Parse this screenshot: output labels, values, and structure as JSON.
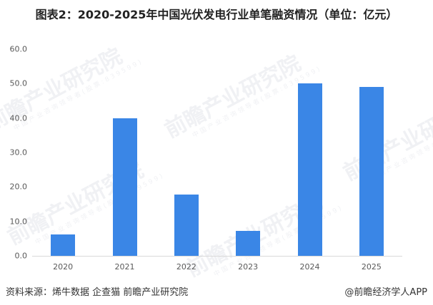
{
  "title": "图表2：2020-2025年中国光伏发电行业单笔融资情况（单位：亿元）",
  "footer": {
    "source": "资料来源：烯牛数据 企查猫 前瞻产业研究院",
    "credit": "@前瞻经济学人APP"
  },
  "watermark": {
    "text": "前瞻产业研究院",
    "subtext": "中国产业咨询领导者(股票:839599)"
  },
  "colors": {
    "bar": "#3a86e6",
    "axis": "#d9d9d9",
    "tick_text": "#595959"
  },
  "chart_data": {
    "type": "bar",
    "title": "图表2：2020-2025年中国光伏发电行业单笔融资情况（单位：亿元）",
    "xlabel": "",
    "ylabel": "亿元",
    "categories": [
      "2020",
      "2021",
      "2022",
      "2023",
      "2024",
      "2025"
    ],
    "values": [
      6.2,
      40.0,
      17.8,
      7.2,
      50.0,
      49.0
    ],
    "ylim": [
      0,
      60
    ],
    "yticks": [
      "0.0",
      "10.0",
      "20.0",
      "30.0",
      "40.0",
      "50.0",
      "60.0"
    ],
    "grid": false,
    "legend": null
  }
}
